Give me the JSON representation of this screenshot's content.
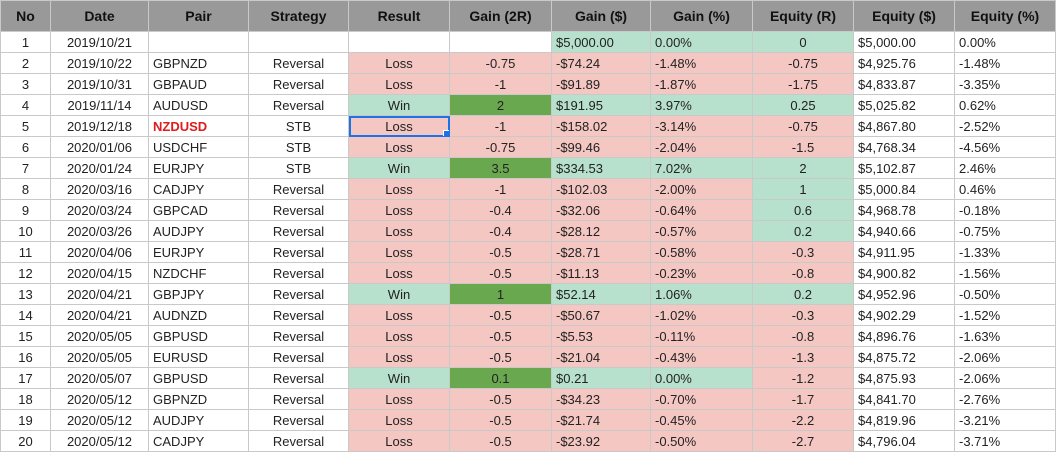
{
  "columns": [
    "No",
    "Date",
    "Pair",
    "Strategy",
    "Result",
    "Gain (2R)",
    "Gain ($)",
    "Gain (%)",
    "Equity (R)",
    "Equity ($)",
    "Equity (%)"
  ],
  "rows": [
    {
      "no": "1",
      "date": "2019/10/21",
      "pair": "",
      "strategy": "",
      "result": "",
      "gain_r": "",
      "gain_usd": "$5,000.00",
      "gain_pct": "0.00%",
      "equity_r": "0",
      "equity_usd": "$5,000.00",
      "equity_pct": "0.00%"
    },
    {
      "no": "2",
      "date": "2019/10/22",
      "pair": "GBPNZD",
      "strategy": "Reversal",
      "result": "Loss",
      "gain_r": "-0.75",
      "gain_usd": "-$74.24",
      "gain_pct": "-1.48%",
      "equity_r": "-0.75",
      "equity_usd": "$4,925.76",
      "equity_pct": "-1.48%"
    },
    {
      "no": "3",
      "date": "2019/10/31",
      "pair": "GBPAUD",
      "strategy": "Reversal",
      "result": "Loss",
      "gain_r": "-1",
      "gain_usd": "-$91.89",
      "gain_pct": "-1.87%",
      "equity_r": "-1.75",
      "equity_usd": "$4,833.87",
      "equity_pct": "-3.35%"
    },
    {
      "no": "4",
      "date": "2019/11/14",
      "pair": "AUDUSD",
      "strategy": "Reversal",
      "result": "Win",
      "gain_r": "2",
      "gain_usd": "$191.95",
      "gain_pct": "3.97%",
      "equity_r": "0.25",
      "equity_usd": "$5,025.82",
      "equity_pct": "0.62%"
    },
    {
      "no": "5",
      "date": "2019/12/18",
      "pair": "NZDUSD",
      "strategy": "STB",
      "result": "Loss",
      "gain_r": "-1",
      "gain_usd": "-$158.02",
      "gain_pct": "-3.14%",
      "equity_r": "-0.75",
      "equity_usd": "$4,867.80",
      "equity_pct": "-2.52%"
    },
    {
      "no": "6",
      "date": "2020/01/06",
      "pair": "USDCHF",
      "strategy": "STB",
      "result": "Loss",
      "gain_r": "-0.75",
      "gain_usd": "-$99.46",
      "gain_pct": "-2.04%",
      "equity_r": "-1.5",
      "equity_usd": "$4,768.34",
      "equity_pct": "-4.56%"
    },
    {
      "no": "7",
      "date": "2020/01/24",
      "pair": "EURJPY",
      "strategy": "STB",
      "result": "Win",
      "gain_r": "3.5",
      "gain_usd": "$334.53",
      "gain_pct": "7.02%",
      "equity_r": "2",
      "equity_usd": "$5,102.87",
      "equity_pct": "2.46%"
    },
    {
      "no": "8",
      "date": "2020/03/16",
      "pair": "CADJPY",
      "strategy": "Reversal",
      "result": "Loss",
      "gain_r": "-1",
      "gain_usd": "-$102.03",
      "gain_pct": "-2.00%",
      "equity_r": "1",
      "equity_usd": "$5,000.84",
      "equity_pct": "0.46%"
    },
    {
      "no": "9",
      "date": "2020/03/24",
      "pair": "GBPCAD",
      "strategy": "Reversal",
      "result": "Loss",
      "gain_r": "-0.4",
      "gain_usd": "-$32.06",
      "gain_pct": "-0.64%",
      "equity_r": "0.6",
      "equity_usd": "$4,968.78",
      "equity_pct": "-0.18%"
    },
    {
      "no": "10",
      "date": "2020/03/26",
      "pair": "AUDJPY",
      "strategy": "Reversal",
      "result": "Loss",
      "gain_r": "-0.4",
      "gain_usd": "-$28.12",
      "gain_pct": "-0.57%",
      "equity_r": "0.2",
      "equity_usd": "$4,940.66",
      "equity_pct": "-0.75%"
    },
    {
      "no": "11",
      "date": "2020/04/06",
      "pair": "EURJPY",
      "strategy": "Reversal",
      "result": "Loss",
      "gain_r": "-0.5",
      "gain_usd": "-$28.71",
      "gain_pct": "-0.58%",
      "equity_r": "-0.3",
      "equity_usd": "$4,911.95",
      "equity_pct": "-1.33%"
    },
    {
      "no": "12",
      "date": "2020/04/15",
      "pair": "NZDCHF",
      "strategy": "Reversal",
      "result": "Loss",
      "gain_r": "-0.5",
      "gain_usd": "-$11.13",
      "gain_pct": "-0.23%",
      "equity_r": "-0.8",
      "equity_usd": "$4,900.82",
      "equity_pct": "-1.56%"
    },
    {
      "no": "13",
      "date": "2020/04/21",
      "pair": "GBPJPY",
      "strategy": "Reversal",
      "result": "Win",
      "gain_r": "1",
      "gain_usd": "$52.14",
      "gain_pct": "1.06%",
      "equity_r": "0.2",
      "equity_usd": "$4,952.96",
      "equity_pct": "-0.50%"
    },
    {
      "no": "14",
      "date": "2020/04/21",
      "pair": "AUDNZD",
      "strategy": "Reversal",
      "result": "Loss",
      "gain_r": "-0.5",
      "gain_usd": "-$50.67",
      "gain_pct": "-1.02%",
      "equity_r": "-0.3",
      "equity_usd": "$4,902.29",
      "equity_pct": "-1.52%"
    },
    {
      "no": "15",
      "date": "2020/05/05",
      "pair": "GBPUSD",
      "strategy": "Reversal",
      "result": "Loss",
      "gain_r": "-0.5",
      "gain_usd": "-$5.53",
      "gain_pct": "-0.11%",
      "equity_r": "-0.8",
      "equity_usd": "$4,896.76",
      "equity_pct": "-1.63%"
    },
    {
      "no": "16",
      "date": "2020/05/05",
      "pair": "EURUSD",
      "strategy": "Reversal",
      "result": "Loss",
      "gain_r": "-0.5",
      "gain_usd": "-$21.04",
      "gain_pct": "-0.43%",
      "equity_r": "-1.3",
      "equity_usd": "$4,875.72",
      "equity_pct": "-2.06%"
    },
    {
      "no": "17",
      "date": "2020/05/07",
      "pair": "GBPUSD",
      "strategy": "Reversal",
      "result": "Win",
      "gain_r": "0.1",
      "gain_usd": "$0.21",
      "gain_pct": "0.00%",
      "equity_r": "-1.2",
      "equity_usd": "$4,875.93",
      "equity_pct": "-2.06%"
    },
    {
      "no": "18",
      "date": "2020/05/12",
      "pair": "GBPNZD",
      "strategy": "Reversal",
      "result": "Loss",
      "gain_r": "-0.5",
      "gain_usd": "-$34.23",
      "gain_pct": "-0.70%",
      "equity_r": "-1.7",
      "equity_usd": "$4,841.70",
      "equity_pct": "-2.76%"
    },
    {
      "no": "19",
      "date": "2020/05/12",
      "pair": "AUDJPY",
      "strategy": "Reversal",
      "result": "Loss",
      "gain_r": "-0.5",
      "gain_usd": "-$21.74",
      "gain_pct": "-0.45%",
      "equity_r": "-2.2",
      "equity_usd": "$4,819.96",
      "equity_pct": "-3.21%"
    },
    {
      "no": "20",
      "date": "2020/05/12",
      "pair": "CADJPY",
      "strategy": "Reversal",
      "result": "Loss",
      "gain_r": "-0.5",
      "gain_usd": "-$23.92",
      "gain_pct": "-0.50%",
      "equity_r": "-2.7",
      "equity_usd": "$4,796.04",
      "equity_pct": "-3.71%"
    }
  ],
  "colors": {
    "header": "#999999",
    "loss": "#f4c7c3",
    "win": "#b7e1cd",
    "strong_win": "#6aa84f",
    "highlight_text": "#e01b1b",
    "selection": "#1a73e8"
  }
}
